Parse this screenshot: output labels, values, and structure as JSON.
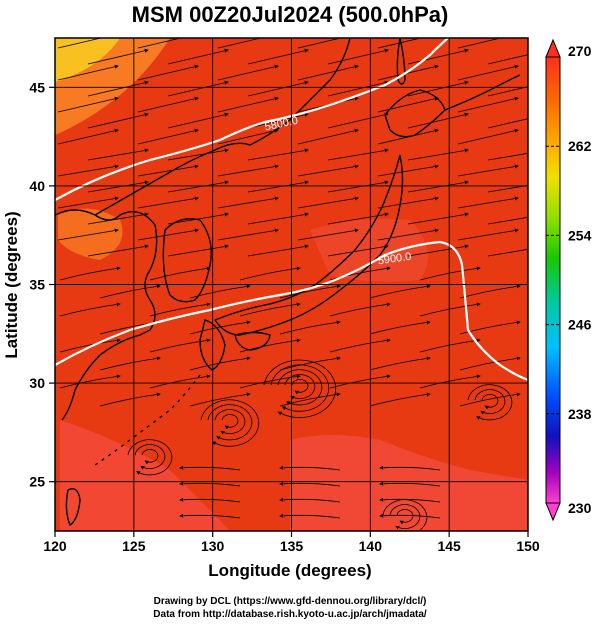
{
  "title": "MSM 00Z20Jul2024 (500.0hPa)",
  "axes": {
    "xlabel": "Longitude (degrees)",
    "ylabel": "Latitude  (degrees)",
    "xlim": [
      120,
      150
    ],
    "ylim": [
      22.5,
      47.5
    ],
    "xticks": [
      "120",
      "125",
      "130",
      "135",
      "140",
      "145",
      "150"
    ],
    "yticks": [
      "25",
      "30",
      "35",
      "40",
      "45"
    ],
    "grid": true
  },
  "colorbar": {
    "labels": [
      "270",
      "262",
      "254",
      "246",
      "238",
      "230"
    ],
    "range": [
      230,
      270
    ],
    "colors": [
      "#ff2f1a",
      "#ff8a00",
      "#ffe000",
      "#8ae000",
      "#19c800",
      "#00c8a0",
      "#00c8ff",
      "#0060ff",
      "#1010d0",
      "#6000c0",
      "#c000c0",
      "#ff40d0"
    ]
  },
  "contours": [
    {
      "label": "5800.0"
    },
    {
      "label": "5900.0"
    }
  ],
  "field": {
    "colors": {
      "warm": "#e83a12",
      "hot": "#f24a3a",
      "cool": "#f87a22",
      "coolest": "#f8c020",
      "line": "#ffffff",
      "vector": "#000000"
    }
  },
  "footer": {
    "line1": "Drawing by DCL (https://www.gfd-dennou.org/library/dcl/)",
    "line2": "Data from http://database.rish.kyoto-u.ac.jp/arch/jmadata/"
  }
}
